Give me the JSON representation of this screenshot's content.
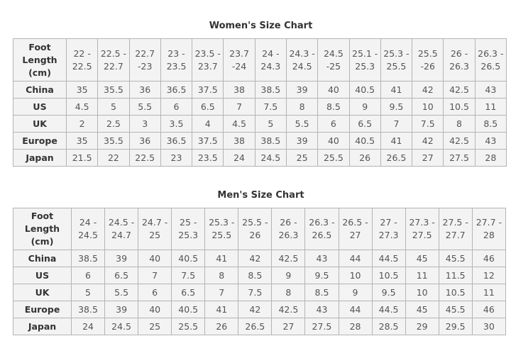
{
  "women": {
    "title": "Women's Size Chart",
    "header_label": "Foot\nLength\n(cm)",
    "foot_lengths": [
      "22 -\n22.5",
      "22.5 -\n22.7",
      "22.7\n-23",
      "23 -\n23.5",
      "23.5 -\n23.7",
      "23.7\n-24",
      "24 -\n24.3",
      "24.3 -\n24.5",
      "24.5\n-25",
      "25.1 -\n25.3",
      "25.3 -\n25.5",
      "25.5\n-26",
      "26 -\n26.3",
      "26.3 -\n26.5"
    ],
    "rows": [
      {
        "label": "China",
        "values": [
          "35",
          "35.5",
          "36",
          "36.5",
          "37.5",
          "38",
          "38.5",
          "39",
          "40",
          "40.5",
          "41",
          "42",
          "42.5",
          "43"
        ]
      },
      {
        "label": "US",
        "values": [
          "4.5",
          "5",
          "5.5",
          "6",
          "6.5",
          "7",
          "7.5",
          "8",
          "8.5",
          "9",
          "9.5",
          "10",
          "10.5",
          "11"
        ]
      },
      {
        "label": "UK",
        "values": [
          "2",
          "2.5",
          "3",
          "3.5",
          "4",
          "4.5",
          "5",
          "5.5",
          "6",
          "6.5",
          "7",
          "7.5",
          "8",
          "8.5"
        ]
      },
      {
        "label": "Europe",
        "values": [
          "35",
          "35.5",
          "36",
          "36.5",
          "37.5",
          "38",
          "38.5",
          "39",
          "40",
          "40.5",
          "41",
          "42",
          "42.5",
          "43"
        ]
      },
      {
        "label": "Japan",
        "values": [
          "21.5",
          "22",
          "22.5",
          "23",
          "23.5",
          "24",
          "24.5",
          "25",
          "25.5",
          "26",
          "26.5",
          "27",
          "27.5",
          "28"
        ]
      }
    ]
  },
  "men": {
    "title": "Men's Size Chart",
    "header_label": "Foot\nLength\n(cm)",
    "foot_lengths": [
      "24 -\n24.5",
      "24.5 -\n24.7",
      "24.7 -\n25",
      "25 -\n25.3",
      "25.3 -\n25.5",
      "25.5 -\n26",
      "26 -\n26.3",
      "26.3 -\n26.5",
      "26.5 -\n27",
      "27 -\n27.3",
      "27.3 -\n27.5",
      "27.5 -\n27.7",
      "27.7 -\n28"
    ],
    "rows": [
      {
        "label": "China",
        "values": [
          "38.5",
          "39",
          "40",
          "40.5",
          "41",
          "42",
          "42.5",
          "43",
          "44",
          "44.5",
          "45",
          "45.5",
          "46"
        ]
      },
      {
        "label": "US",
        "values": [
          "6",
          "6.5",
          "7",
          "7.5",
          "8",
          "8.5",
          "9",
          "9.5",
          "10",
          "10.5",
          "11",
          "11.5",
          "12"
        ]
      },
      {
        "label": "UK",
        "values": [
          "5",
          "5.5",
          "6",
          "6.5",
          "7",
          "7.5",
          "8",
          "8.5",
          "9",
          "9.5",
          "10",
          "10.5",
          "11"
        ]
      },
      {
        "label": "Europe",
        "values": [
          "38.5",
          "39",
          "40",
          "40.5",
          "41",
          "42",
          "42.5",
          "43",
          "44",
          "44.5",
          "45",
          "45.5",
          "46"
        ]
      },
      {
        "label": "Japan",
        "values": [
          "24",
          "24.5",
          "25",
          "25.5",
          "26",
          "26.5",
          "27",
          "27.5",
          "28",
          "28.5",
          "29",
          "29.5",
          "30"
        ]
      }
    ]
  }
}
